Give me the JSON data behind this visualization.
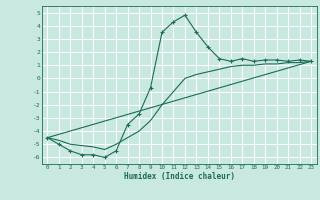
{
  "title": "",
  "xlabel": "Humidex (Indice chaleur)",
  "bg_color": "#c8e8e0",
  "line_color": "#1a6b5a",
  "grid_color": "#ffffff",
  "xlim": [
    -0.5,
    23.5
  ],
  "ylim": [
    -6.5,
    5.5
  ],
  "yticks": [
    -6,
    -5,
    -4,
    -3,
    -2,
    -1,
    0,
    1,
    2,
    3,
    4,
    5
  ],
  "xticks": [
    0,
    1,
    2,
    3,
    4,
    5,
    6,
    7,
    8,
    9,
    10,
    11,
    12,
    13,
    14,
    15,
    16,
    17,
    18,
    19,
    20,
    21,
    22,
    23
  ],
  "curve1_x": [
    0,
    1,
    2,
    3,
    4,
    5,
    6,
    7,
    8,
    9,
    10,
    11,
    12,
    13,
    14,
    15,
    16,
    17,
    18,
    19,
    20,
    21,
    22,
    23
  ],
  "curve1_y": [
    -4.5,
    -5.0,
    -5.5,
    -5.8,
    -5.8,
    -6.0,
    -5.5,
    -3.5,
    -2.7,
    -0.7,
    3.5,
    4.3,
    4.8,
    3.5,
    2.4,
    1.5,
    1.3,
    1.5,
    1.3,
    1.4,
    1.4,
    1.3,
    1.4,
    1.3
  ],
  "curve2_x": [
    0,
    1,
    2,
    3,
    4,
    5,
    6,
    7,
    8,
    9,
    10,
    11,
    12,
    13,
    14,
    15,
    16,
    17,
    18,
    19,
    20,
    21,
    22,
    23
  ],
  "curve2_y": [
    -4.5,
    -4.7,
    -5.0,
    -5.1,
    -5.2,
    -5.4,
    -5.0,
    -4.5,
    -4.0,
    -3.2,
    -2.0,
    -1.0,
    0.0,
    0.3,
    0.5,
    0.7,
    0.9,
    1.0,
    1.0,
    1.1,
    1.1,
    1.2,
    1.2,
    1.3
  ],
  "curve3_x": [
    0,
    23
  ],
  "curve3_y": [
    -4.5,
    1.3
  ]
}
